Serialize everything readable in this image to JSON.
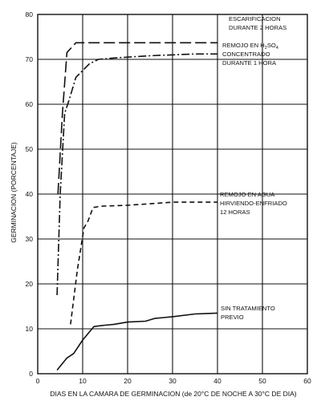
{
  "chart_data": {
    "type": "line",
    "xlabel": "DIAS EN LA CAMARA DE GERMINACION (de 20°C DE NOCHE A 30°C DE DIA)",
    "ylabel": "GERMINACION (PORCENTAJE)",
    "xlim": [
      0,
      60
    ],
    "ylim": [
      0,
      80
    ],
    "xticks": [
      "0",
      "10",
      "20",
      "30",
      "40",
      "50",
      "60"
    ],
    "yticks": [
      "0",
      "10",
      "20",
      "30",
      "40",
      "50",
      "60",
      "70",
      "80"
    ],
    "grid": true,
    "series": [
      {
        "style": "long-dash",
        "label_lines": [
          "ESCARIFICACION",
          "DURANTE 2 HORAS"
        ],
        "x": [
          4.5,
          5.5,
          6.5,
          8.5,
          12,
          20,
          30,
          40
        ],
        "y": [
          40,
          58,
          71.5,
          73.7,
          73.7,
          73.7,
          73.7,
          73.7
        ]
      },
      {
        "style": "dash-dot",
        "label_lines": [
          "REMOJO EN H",
          "2",
          "SO",
          "4",
          "CONCENTRADO",
          "DURANTE 1 HORA"
        ],
        "x": [
          4.3,
          5,
          6,
          7,
          8.5,
          10,
          11.5,
          13.5,
          17,
          25,
          35,
          40
        ],
        "y": [
          17.5,
          40,
          58,
          61,
          66,
          67.5,
          69,
          70,
          70.3,
          70.8,
          71.2,
          71.2
        ]
      },
      {
        "style": "short-dash",
        "label_lines": [
          "REMOJO EN AGUA",
          "HIRVIENDO-ENFRIADO",
          "12 HORAS"
        ],
        "x": [
          7.3,
          8.8,
          10.3,
          11.2,
          12.3,
          14,
          20,
          30,
          40
        ],
        "y": [
          11,
          23,
          32.5,
          34,
          37,
          37.3,
          37.5,
          38.2,
          38.2
        ]
      },
      {
        "style": "solid",
        "label_lines": [
          "SIN TRATAMIENTO",
          "PREVIO"
        ],
        "x": [
          4.3,
          6.5,
          8,
          10,
          12.5,
          15,
          17,
          20,
          24,
          26,
          28,
          30,
          35,
          40
        ],
        "y": [
          0.8,
          3.5,
          4.5,
          7.5,
          10.5,
          10.8,
          11,
          11.5,
          11.7,
          12.3,
          12.5,
          12.7,
          13.3,
          13.5
        ]
      }
    ]
  }
}
